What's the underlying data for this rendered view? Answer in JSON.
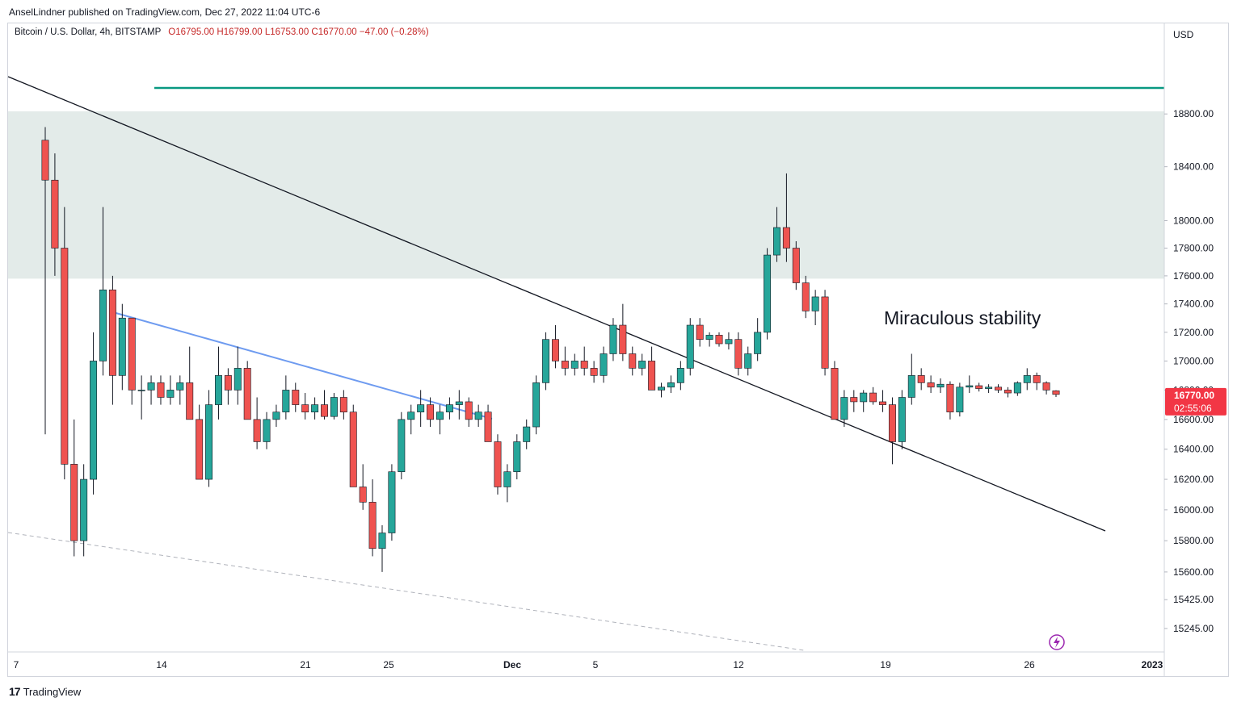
{
  "publisher_line": "AnselLindner published on TradingView.com, Dec 27, 2022 11:04 UTC-6",
  "symbol": {
    "name": "Bitcoin / U.S. Dollar, 4h, BITSTAMP",
    "ohlc": "O16795.00  H16799.00  L16753.00  C16770.00  −47.00 (−0.28%)"
  },
  "axis": {
    "currency_label": "USD",
    "price_label": "16770.00",
    "countdown_label": "02:55:06",
    "price_label_color": "#f23645"
  },
  "annotation": "Miraculous stability",
  "footer": {
    "logo_mark": "17",
    "brand": "TradingView"
  },
  "icons": {
    "alert": "lightning-icon"
  },
  "colors": {
    "up": "#26a69a",
    "down": "#ef5350",
    "zone": "#e3ebe9",
    "resistance": "#089981",
    "trend_blue": "#6e9bf0"
  },
  "chart_data": {
    "type": "candlestick",
    "title": "",
    "x_ticks": [
      "7",
      "14",
      "21",
      "25",
      "Dec",
      "5",
      "12",
      "19",
      "26",
      "2023"
    ],
    "y_ticks": [
      15245,
      15425,
      15600,
      15800,
      16000,
      16200,
      16400,
      16600,
      16800,
      17000,
      17200,
      17400,
      17600,
      17800,
      18000,
      18400,
      18800
    ],
    "y_scale": "log",
    "ylim": [
      15100,
      19500
    ],
    "current_price": 16770.0,
    "resistance_level": 19000,
    "zone": [
      17580,
      18820
    ],
    "series": [
      {
        "values": [
          [
            18600,
            18700,
            16500,
            18300
          ],
          [
            18300,
            18500,
            17600,
            17800
          ],
          [
            17800,
            18100,
            16200,
            16300
          ],
          [
            16300,
            16600,
            15700,
            15800
          ],
          [
            15800,
            16300,
            15700,
            16200
          ],
          [
            16200,
            17200,
            16100,
            17000
          ],
          [
            17000,
            18100,
            16900,
            17500
          ],
          [
            17500,
            17600,
            16700,
            16900
          ],
          [
            16900,
            17400,
            16800,
            17300
          ],
          [
            17300,
            17300,
            16700,
            16800
          ],
          [
            16800,
            16900,
            16600,
            16800
          ],
          [
            16800,
            16900,
            16700,
            16850
          ],
          [
            16850,
            16900,
            16700,
            16750
          ],
          [
            16750,
            16900,
            16700,
            16800
          ],
          [
            16800,
            16900,
            16700,
            16850
          ],
          [
            16850,
            17100,
            16700,
            16600
          ],
          [
            16600,
            16700,
            16300,
            16200
          ],
          [
            16200,
            16800,
            16150,
            16700
          ],
          [
            16700,
            17100,
            16600,
            16900
          ],
          [
            16900,
            16950,
            16700,
            16800
          ],
          [
            16800,
            17100,
            16700,
            16950
          ],
          [
            16950,
            17000,
            16700,
            16600
          ],
          [
            16600,
            16750,
            16400,
            16450
          ],
          [
            16450,
            16650,
            16400,
            16600
          ],
          [
            16600,
            16700,
            16550,
            16650
          ],
          [
            16650,
            16900,
            16600,
            16800
          ],
          [
            16800,
            16850,
            16650,
            16700
          ],
          [
            16700,
            16780,
            16600,
            16650
          ],
          [
            16650,
            16750,
            16600,
            16700
          ],
          [
            16700,
            16800,
            16600,
            16620
          ],
          [
            16620,
            16780,
            16600,
            16750
          ],
          [
            16750,
            16800,
            16600,
            16650
          ],
          [
            16650,
            16700,
            16400,
            16150
          ],
          [
            16150,
            16300,
            16000,
            16050
          ],
          [
            16050,
            16200,
            15700,
            15750
          ],
          [
            15750,
            15900,
            15600,
            15850
          ],
          [
            15850,
            16300,
            15800,
            16250
          ],
          [
            16250,
            16650,
            16200,
            16600
          ],
          [
            16600,
            16700,
            16500,
            16650
          ],
          [
            16650,
            16800,
            16550,
            16700
          ],
          [
            16700,
            16750,
            16550,
            16600
          ],
          [
            16600,
            16700,
            16500,
            16650
          ],
          [
            16650,
            16750,
            16600,
            16700
          ],
          [
            16700,
            16800,
            16600,
            16720
          ],
          [
            16720,
            16750,
            16550,
            16600
          ],
          [
            16600,
            16700,
            16550,
            16650
          ],
          [
            16650,
            16700,
            16550,
            16450
          ],
          [
            16450,
            16500,
            16100,
            16150
          ],
          [
            16150,
            16300,
            16050,
            16250
          ],
          [
            16250,
            16500,
            16200,
            16450
          ],
          [
            16450,
            16600,
            16400,
            16550
          ],
          [
            16550,
            16900,
            16500,
            16850
          ],
          [
            16850,
            17200,
            16800,
            17150
          ],
          [
            17150,
            17250,
            16950,
            17000
          ],
          [
            17000,
            17100,
            16900,
            16950
          ],
          [
            16950,
            17050,
            16900,
            17000
          ],
          [
            17000,
            17100,
            16900,
            16950
          ],
          [
            16950,
            17000,
            16850,
            16900
          ],
          [
            16900,
            17100,
            16850,
            17050
          ],
          [
            17050,
            17300,
            17000,
            17250
          ],
          [
            17250,
            17400,
            17000,
            17050
          ],
          [
            17050,
            17100,
            16900,
            16950
          ],
          [
            16950,
            17050,
            16900,
            17000
          ],
          [
            17000,
            17100,
            16800,
            16800
          ],
          [
            16800,
            16850,
            16750,
            16820
          ],
          [
            16820,
            16900,
            16780,
            16850
          ],
          [
            16850,
            17000,
            16800,
            16950
          ],
          [
            16950,
            17300,
            16900,
            17250
          ],
          [
            17250,
            17300,
            17100,
            17150
          ],
          [
            17150,
            17200,
            17100,
            17180
          ],
          [
            17180,
            17200,
            17100,
            17120
          ],
          [
            17120,
            17200,
            17080,
            17150
          ],
          [
            17150,
            17200,
            16900,
            16950
          ],
          [
            16950,
            17100,
            16900,
            17050
          ],
          [
            17050,
            17300,
            17000,
            17200
          ],
          [
            17200,
            17800,
            17150,
            17750
          ],
          [
            17750,
            18100,
            17700,
            17950
          ],
          [
            17950,
            18350,
            17700,
            17800
          ],
          [
            17800,
            17850,
            17500,
            17550
          ],
          [
            17550,
            17600,
            17300,
            17350
          ],
          [
            17350,
            17500,
            17250,
            17450
          ],
          [
            17450,
            17500,
            16900,
            16950
          ],
          [
            16950,
            17000,
            16700,
            16600
          ],
          [
            16600,
            16800,
            16550,
            16750
          ],
          [
            16750,
            16800,
            16650,
            16720
          ],
          [
            16720,
            16800,
            16650,
            16780
          ],
          [
            16780,
            16820,
            16700,
            16720
          ],
          [
            16720,
            16800,
            16650,
            16700
          ],
          [
            16700,
            16750,
            16300,
            16450
          ],
          [
            16450,
            16800,
            16400,
            16750
          ],
          [
            16750,
            17050,
            16700,
            16900
          ],
          [
            16900,
            16950,
            16800,
            16850
          ],
          [
            16850,
            16900,
            16780,
            16820
          ],
          [
            16820,
            16880,
            16780,
            16840
          ],
          [
            16840,
            16860,
            16600,
            16650
          ],
          [
            16650,
            16850,
            16620,
            16820
          ],
          [
            16820,
            16900,
            16780,
            16830
          ],
          [
            16830,
            16850,
            16790,
            16810
          ],
          [
            16810,
            16840,
            16780,
            16820
          ],
          [
            16820,
            16840,
            16780,
            16800
          ],
          [
            16800,
            16820,
            16750,
            16780
          ],
          [
            16780,
            16860,
            16760,
            16850
          ],
          [
            16850,
            16950,
            16800,
            16900
          ],
          [
            16900,
            16920,
            16800,
            16850
          ],
          [
            16850,
            16860,
            16770,
            16800
          ],
          [
            16795,
            16799,
            16753,
            16770
          ]
        ]
      }
    ]
  }
}
